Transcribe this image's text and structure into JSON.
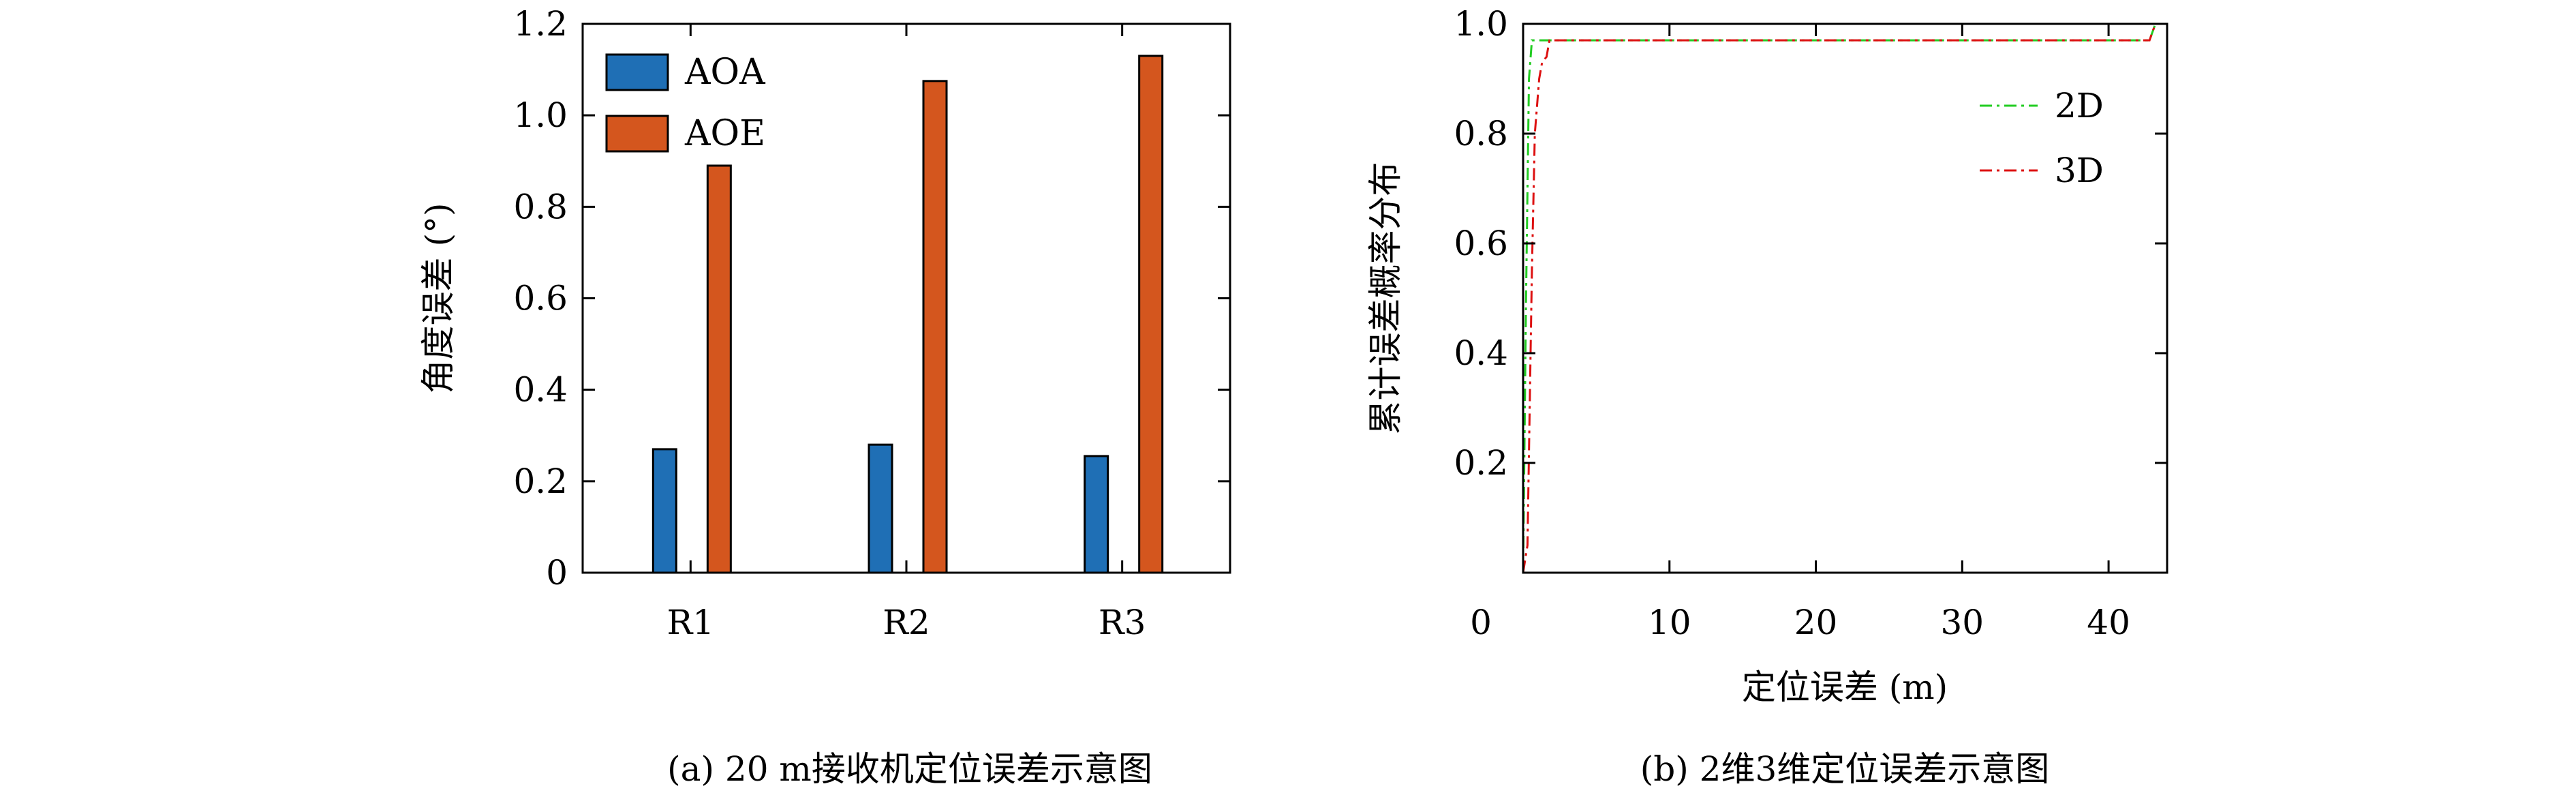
{
  "chart_data": [
    {
      "type": "bar",
      "panel": "a",
      "caption": "(a) 20 m接收机定位误差示意图",
      "ylabel": "角度误差 (°)",
      "xlabel": "",
      "categories": [
        "R1",
        "R2",
        "R3"
      ],
      "ylim": [
        0,
        1.2
      ],
      "yticks": [
        0,
        0.2,
        0.4,
        0.6,
        0.8,
        1.0,
        1.2
      ],
      "ytick_labels": [
        "0",
        "0.2",
        "0.4",
        "0.6",
        "0.8",
        "1.0",
        "1.2"
      ],
      "legend_position": "top-left",
      "series": [
        {
          "name": "AOA",
          "color": "#1f6fb5",
          "values": [
            0.27,
            0.28,
            0.255
          ]
        },
        {
          "name": "AOE",
          "color": "#d4561e",
          "values": [
            0.89,
            1.075,
            1.13
          ]
        }
      ]
    },
    {
      "type": "line",
      "panel": "b",
      "caption": "(b) 2维3维定位误差示意图",
      "ylabel": "累计误差概率分布",
      "xlabel": "定位误差 (m)",
      "xlim": [
        0,
        44
      ],
      "ylim": [
        0,
        1.0
      ],
      "xticks": [
        0,
        10,
        20,
        30,
        40
      ],
      "xtick_labels": [
        "0",
        "10",
        "20",
        "30",
        "40"
      ],
      "yticks": [
        0.2,
        0.4,
        0.6,
        0.8,
        1.0
      ],
      "ytick_labels": [
        "0.2",
        "0.4",
        "0.6",
        "0.8",
        "1.0"
      ],
      "legend_position": "top-right",
      "series": [
        {
          "name": "2D",
          "color": "#22cc22",
          "dash": "dash-dot",
          "points": [
            [
              0,
              0
            ],
            [
              0.2,
              0.5
            ],
            [
              0.4,
              0.9
            ],
            [
              0.6,
              0.97
            ],
            [
              1.5,
              0.97
            ],
            [
              30,
              0.97
            ],
            [
              42.8,
              0.97
            ],
            [
              43.2,
              1.0
            ],
            [
              44,
              1.0
            ]
          ]
        },
        {
          "name": "3D",
          "color": "#dd1111",
          "dash": "dash-dot",
          "points": [
            [
              0,
              0
            ],
            [
              0.3,
              0.05
            ],
            [
              0.6,
              0.55
            ],
            [
              0.8,
              0.8
            ],
            [
              1.1,
              0.9
            ],
            [
              1.3,
              0.93
            ],
            [
              1.6,
              0.94
            ],
            [
              1.8,
              0.97
            ],
            [
              30,
              0.97
            ],
            [
              42.8,
              0.97
            ],
            [
              43.2,
              1.0
            ],
            [
              44,
              1.0
            ]
          ]
        }
      ]
    }
  ]
}
